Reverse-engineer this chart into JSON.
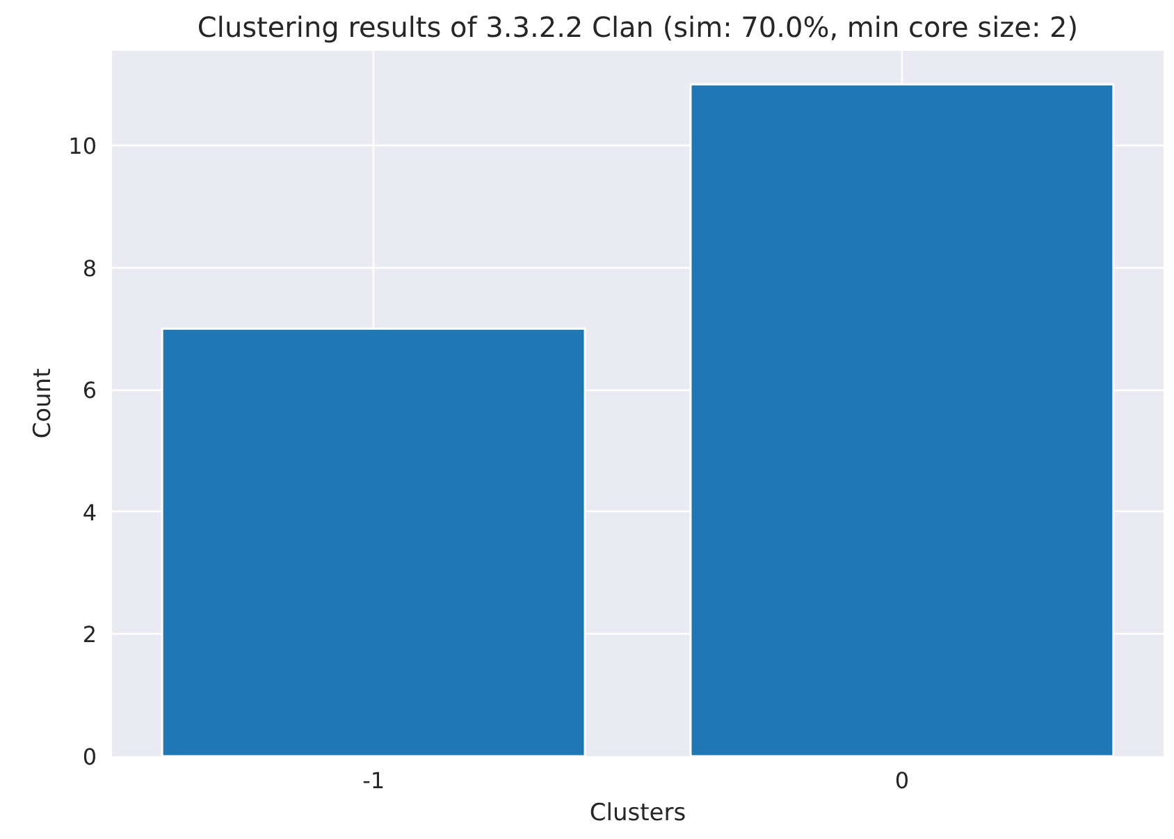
{
  "chart_data": {
    "type": "bar",
    "title": "Clustering results of 3.3.2.2 Clan (sim: 70.0%, min core size: 2)",
    "xlabel": "Clusters",
    "ylabel": "Count",
    "categories": [
      "-1",
      "0"
    ],
    "values": [
      7,
      11
    ],
    "color": "#1f77b4",
    "ylim": [
      0,
      11.55
    ],
    "yticks": [
      0,
      2,
      4,
      6,
      8,
      10
    ],
    "grid": true
  }
}
